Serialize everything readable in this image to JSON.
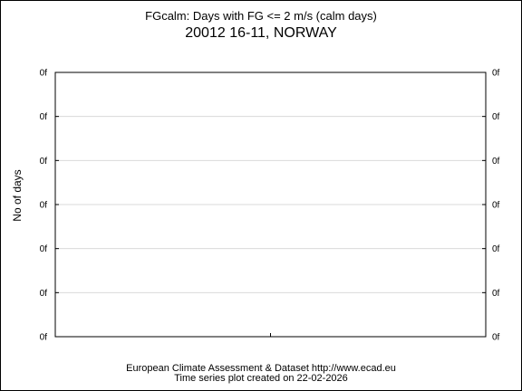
{
  "chart_data": {
    "type": "line",
    "title": "FGcalm: Days with FG <= 2 m/s (calm days)",
    "subtitle": "20012 16-11, NORWAY",
    "ylabel": "No of days",
    "xlabel": "",
    "y_ticks": [
      "0f",
      "0f",
      "0f",
      "0f",
      "0f",
      "0f",
      "0f"
    ],
    "series": [],
    "grid": true,
    "colors": {
      "grid": "#d9d9d9",
      "axis": "#000000"
    }
  },
  "footer": {
    "line1": "European Climate Assessment & Dataset  http://www.ecad.eu",
    "line2": "Time series plot created on 22-02-2026"
  }
}
